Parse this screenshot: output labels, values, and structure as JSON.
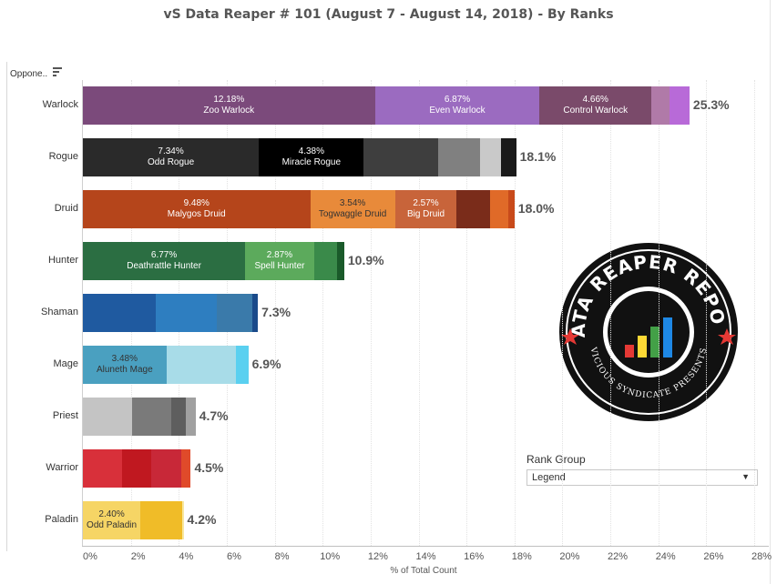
{
  "title": "vS Data Reaper #  101 (August 7 - August 14, 2018) - By Ranks",
  "column_header": "Oppone..",
  "rank_group": {
    "title": "Rank Group",
    "value": "Legend"
  },
  "logo": {
    "text_top": "DATA REAPER REPORT",
    "text_bottom": "VICIOUS SYNDICATE PRESENTS",
    "colors": [
      "#e53935",
      "#fdd835",
      "#43a047",
      "#1e88e5"
    ]
  },
  "chart_data": {
    "type": "bar",
    "orientation": "horizontal",
    "stacked": true,
    "xlabel": "% of Total Count",
    "xlim": [
      0,
      28
    ],
    "x_ticks": [
      "0%",
      "2%",
      "4%",
      "6%",
      "8%",
      "10%",
      "12%",
      "14%",
      "16%",
      "18%",
      "20%",
      "22%",
      "24%",
      "26%",
      "28%"
    ],
    "rows": [
      {
        "category": "Warlock",
        "total_label": "25.3%",
        "segments": [
          {
            "value": 12.18,
            "pct_label": "12.18%",
            "name": "Zoo Warlock",
            "color": "#7b4a7b",
            "text_color": "#ffffff"
          },
          {
            "value": 6.87,
            "pct_label": "6.87%",
            "name": "Even Warlock",
            "color": "#9b6bc0",
            "text_color": "#ffffff"
          },
          {
            "value": 4.66,
            "pct_label": "4.66%",
            "name": "Control Warlock",
            "color": "#7a4a6a",
            "text_color": "#ffffff"
          },
          {
            "value": 0.75,
            "color": "#b07aa8"
          },
          {
            "value": 0.84,
            "color": "#b86ad8"
          }
        ]
      },
      {
        "category": "Rogue",
        "total_label": "18.1%",
        "segments": [
          {
            "value": 7.34,
            "pct_label": "7.34%",
            "name": "Odd Rogue",
            "color": "#2a2a2a",
            "text_color": "#ffffff"
          },
          {
            "value": 4.38,
            "pct_label": "4.38%",
            "name": "Miracle Rogue",
            "color": "#000000",
            "text_color": "#ffffff"
          },
          {
            "value": 3.1,
            "color": "#3e3e3e"
          },
          {
            "value": 1.75,
            "color": "#808080"
          },
          {
            "value": 0.85,
            "color": "#c9c9c9"
          },
          {
            "value": 0.65,
            "color": "#1a1a1a"
          }
        ]
      },
      {
        "category": "Druid",
        "total_label": "18.0%",
        "segments": [
          {
            "value": 9.48,
            "pct_label": "9.48%",
            "name": "Malygos Druid",
            "color": "#b5451b",
            "text_color": "#ffffff"
          },
          {
            "value": 3.54,
            "pct_label": "3.54%",
            "name": "Togwaggle Druid",
            "color": "#e88a3a",
            "text_color": "#333333"
          },
          {
            "value": 2.57,
            "pct_label": "2.57%",
            "name": "Big Druid",
            "color": "#c8643a",
            "text_color": "#ffffff"
          },
          {
            "value": 1.4,
            "color": "#7a2c1a"
          },
          {
            "value": 0.75,
            "color": "#e06a28"
          },
          {
            "value": 0.26,
            "color": "#c84a1a"
          }
        ]
      },
      {
        "category": "Hunter",
        "total_label": "10.9%",
        "segments": [
          {
            "value": 6.77,
            "pct_label": "6.77%",
            "name": "Deathrattle Hunter",
            "color": "#2b6e42",
            "text_color": "#ffffff"
          },
          {
            "value": 2.87,
            "pct_label": "2.87%",
            "name": "Spell Hunter",
            "color": "#5caa5c",
            "text_color": "#ffffff"
          },
          {
            "value": 0.96,
            "color": "#3a8a4a"
          },
          {
            "value": 0.3,
            "color": "#1a5a2a"
          }
        ]
      },
      {
        "category": "Shaman",
        "total_label": "7.3%",
        "segments": [
          {
            "value": 3.05,
            "color": "#1f5aa0"
          },
          {
            "value": 2.55,
            "color": "#2e7ec0"
          },
          {
            "value": 1.45,
            "color": "#3a7aaa"
          },
          {
            "value": 0.25,
            "color": "#1a4a8a"
          }
        ]
      },
      {
        "category": "Mage",
        "total_label": "6.9%",
        "segments": [
          {
            "value": 3.48,
            "pct_label": "3.48%",
            "name": "Aluneth Mage",
            "color": "#4aa0c0",
            "text_color": "#333333"
          },
          {
            "value": 2.92,
            "color": "#a8dce8"
          },
          {
            "value": 0.5,
            "color": "#5ad0f0"
          }
        ]
      },
      {
        "category": "Priest",
        "total_label": "4.7%",
        "segments": [
          {
            "value": 2.05,
            "color": "#c4c4c4"
          },
          {
            "value": 1.65,
            "color": "#7a7a7a"
          },
          {
            "value": 0.6,
            "color": "#5e5e5e"
          },
          {
            "value": 0.4,
            "color": "#a0a0a0"
          }
        ]
      },
      {
        "category": "Warrior",
        "total_label": "4.5%",
        "segments": [
          {
            "value": 1.65,
            "color": "#d8303a"
          },
          {
            "value": 1.2,
            "color": "#c01820"
          },
          {
            "value": 1.25,
            "color": "#c82838"
          },
          {
            "value": 0.4,
            "color": "#e04a2a"
          }
        ]
      },
      {
        "category": "Paladin",
        "total_label": "4.2%",
        "segments": [
          {
            "value": 2.4,
            "pct_label": "2.40%",
            "name": "Odd Paladin",
            "color": "#f6d565",
            "text_color": "#333333"
          },
          {
            "value": 1.75,
            "color": "#f0bc28"
          },
          {
            "value": 0.05,
            "color": "#f8e8a0"
          }
        ]
      }
    ]
  }
}
